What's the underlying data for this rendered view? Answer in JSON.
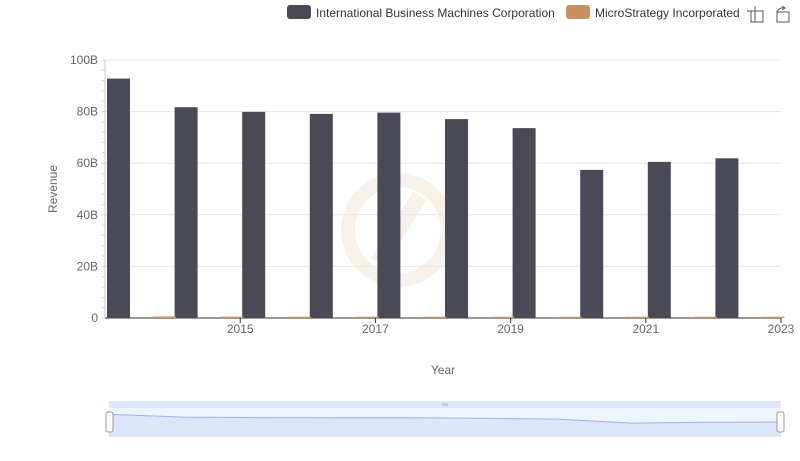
{
  "chart_data": {
    "type": "bar",
    "xlabel": "Year",
    "ylabel": "Revenue",
    "ylim": [
      0,
      100000000000
    ],
    "y_ticks": [
      {
        "value": 0,
        "label": "0"
      },
      {
        "value": 20000000000,
        "label": "20B"
      },
      {
        "value": 40000000000,
        "label": "40B"
      },
      {
        "value": 60000000000,
        "label": "60B"
      },
      {
        "value": 80000000000,
        "label": "80B"
      },
      {
        "value": 100000000000,
        "label": "100B"
      }
    ],
    "x_tick_labels": [
      "2015",
      "2017",
      "2019",
      "2021",
      "2023"
    ],
    "categories": [
      "2014",
      "2015",
      "2016",
      "2017",
      "2018",
      "2019",
      "2020",
      "2021",
      "2022",
      "2023"
    ],
    "series": [
      {
        "name": "International Business Machines Corporation",
        "color": "#4a4a57",
        "values": [
          92800000000,
          81700000000,
          79900000000,
          79100000000,
          79600000000,
          77100000000,
          73600000000,
          57400000000,
          60500000000,
          61900000000
        ]
      },
      {
        "name": "MicroStrategy Incorporated",
        "color": "#c8915e",
        "values": [
          580000000,
          530000000,
          510000000,
          500000000,
          500000000,
          490000000,
          480000000,
          510000000,
          500000000,
          500000000
        ]
      }
    ],
    "legend_position": "top-right",
    "grid": true
  },
  "toolbar": {
    "icons": [
      "crosshair-zoom-icon",
      "reset-zoom-icon"
    ]
  },
  "colors": {
    "ibm": "#4a4a57",
    "microstrategy": "#c8915e",
    "navigator_fill": "#dce6fb",
    "navigator_line": "#9bb4ea"
  }
}
